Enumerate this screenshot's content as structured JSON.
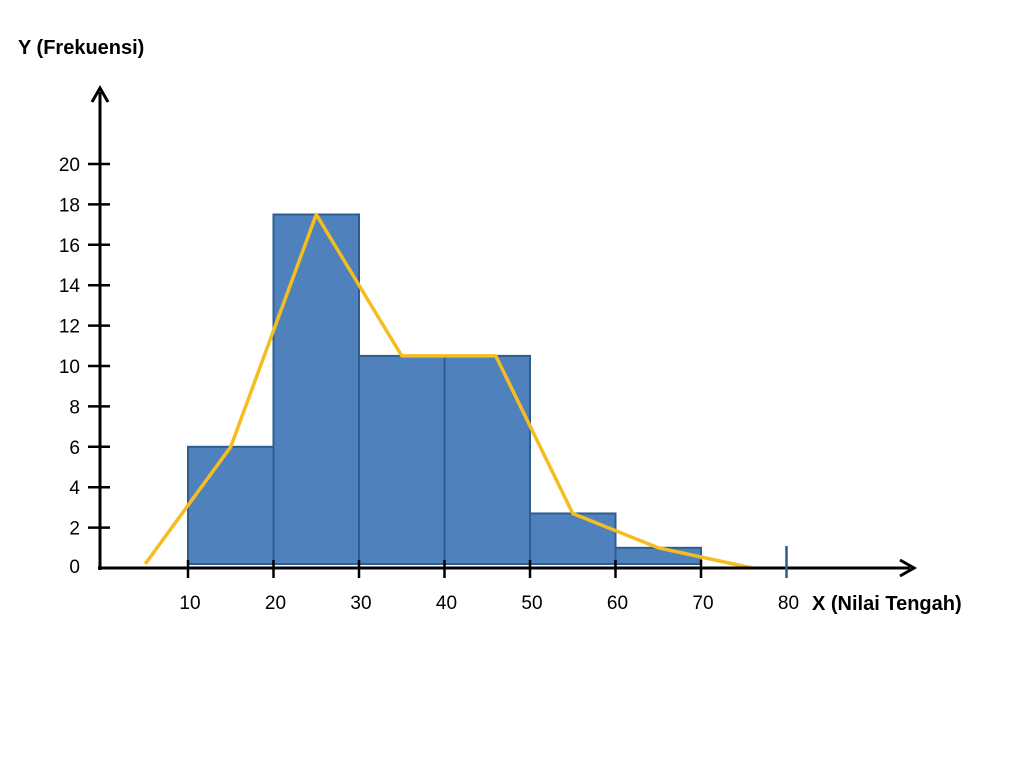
{
  "chart_data": {
    "type": "bar",
    "subtype": "histogram-with-frequency-polygon",
    "ylabel": "Y (Frekuensi)",
    "xlabel": "X (Nilai Tengah)",
    "x_ticks": [
      10,
      20,
      30,
      40,
      50,
      60,
      70,
      80
    ],
    "y_ticks": [
      0,
      2,
      4,
      6,
      8,
      10,
      12,
      14,
      16,
      18,
      20
    ],
    "bins": [
      {
        "start": 10,
        "end": 20,
        "value": 6
      },
      {
        "start": 20,
        "end": 30,
        "value": 17.5
      },
      {
        "start": 30,
        "end": 40,
        "value": 10.5
      },
      {
        "start": 40,
        "end": 50,
        "value": 10.5
      },
      {
        "start": 50,
        "end": 60,
        "value": 2.7
      },
      {
        "start": 60,
        "end": 70,
        "value": 1
      }
    ],
    "polygon": {
      "x": [
        5,
        15,
        25,
        35,
        46,
        55,
        65,
        76
      ],
      "y": [
        0.2,
        6,
        17.5,
        10.5,
        10.5,
        2.7,
        1,
        0
      ]
    },
    "xlim": [
      0,
      90
    ],
    "ylim": [
      0,
      22
    ],
    "colors": {
      "bar_fill": "#4F81BD",
      "bar_stroke": "#2E5D8E",
      "polygon": "#F5BD1F",
      "axis": "#000000"
    },
    "grid": false,
    "legend": "none"
  }
}
